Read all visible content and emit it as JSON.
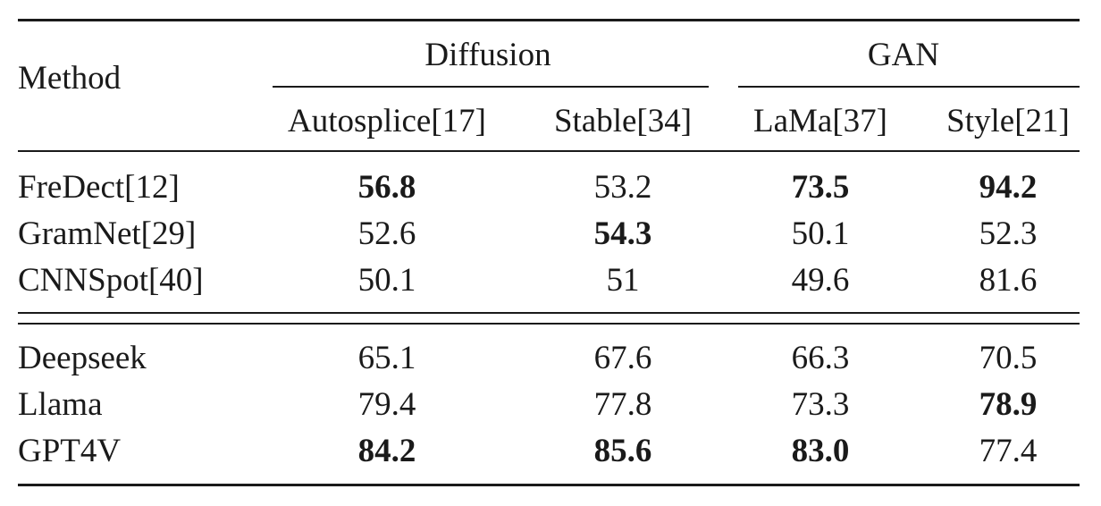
{
  "table": {
    "method_header": "Method",
    "groups": [
      {
        "label": "Diffusion"
      },
      {
        "label": "GAN"
      }
    ],
    "columns": [
      "Autosplice[17]",
      "Stable[34]",
      "LaMa[37]",
      "Style[21]"
    ],
    "section1": [
      {
        "method": "FreDect[12]",
        "values": [
          "56.8",
          "53.2",
          "73.5",
          "94.2"
        ],
        "bold": [
          true,
          false,
          true,
          true
        ]
      },
      {
        "method": "GramNet[29]",
        "values": [
          "52.6",
          "54.3",
          "50.1",
          "52.3"
        ],
        "bold": [
          false,
          true,
          false,
          false
        ]
      },
      {
        "method": "CNNSpot[40]",
        "values": [
          "50.1",
          "51",
          "49.6",
          "81.6"
        ],
        "bold": [
          false,
          false,
          false,
          false
        ]
      }
    ],
    "section2": [
      {
        "method": "Deepseek",
        "values": [
          "65.1",
          "67.6",
          "66.3",
          "70.5"
        ],
        "bold": [
          false,
          false,
          false,
          false
        ]
      },
      {
        "method": "Llama",
        "values": [
          "79.4",
          "77.8",
          "73.3",
          "78.9"
        ],
        "bold": [
          false,
          false,
          false,
          true
        ]
      },
      {
        "method": "GPT4V",
        "values": [
          "84.2",
          "85.6",
          "83.0",
          "77.4"
        ],
        "bold": [
          true,
          true,
          true,
          false
        ]
      }
    ]
  }
}
